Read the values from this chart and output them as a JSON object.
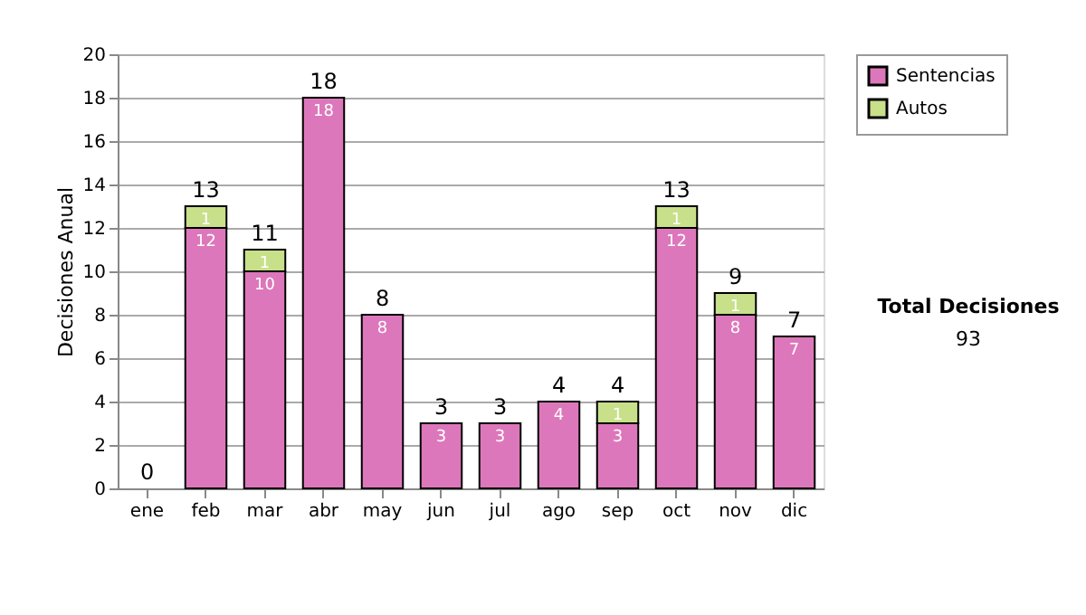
{
  "chart_data": {
    "type": "bar",
    "stacked": true,
    "ylabel": "Decisiones Anual",
    "categories": [
      "ene",
      "feb",
      "mar",
      "abr",
      "may",
      "jun",
      "jul",
      "ago",
      "sep",
      "oct",
      "nov",
      "dic"
    ],
    "series": [
      {
        "name": "Sentencias",
        "color": "#dd77bb",
        "values": [
          0,
          12,
          10,
          18,
          8,
          3,
          3,
          4,
          3,
          12,
          8,
          7
        ],
        "value_labels": [
          null,
          "12",
          "10",
          "18",
          "8",
          "3",
          "3",
          "4",
          "3",
          "12",
          "8",
          "7"
        ]
      },
      {
        "name": "Autos",
        "color": "#c8e08a",
        "values": [
          0,
          1,
          1,
          0,
          0,
          0,
          0,
          0,
          1,
          1,
          1,
          0
        ],
        "value_labels": [
          null,
          "1",
          "1",
          null,
          null,
          null,
          null,
          null,
          "1",
          "1",
          "1",
          null
        ]
      }
    ],
    "totals": [
      "0",
      "13",
      "11",
      "18",
      "8",
      "3",
      "3",
      "4",
      "4",
      "13",
      "9",
      "7"
    ],
    "ylim": [
      0,
      20
    ],
    "yticks": [
      0,
      2,
      4,
      6,
      8,
      10,
      12,
      14,
      16,
      18,
      20
    ],
    "grid": "y",
    "legend": "right",
    "annotations": [
      "Total Decisiones",
      "93"
    ]
  }
}
